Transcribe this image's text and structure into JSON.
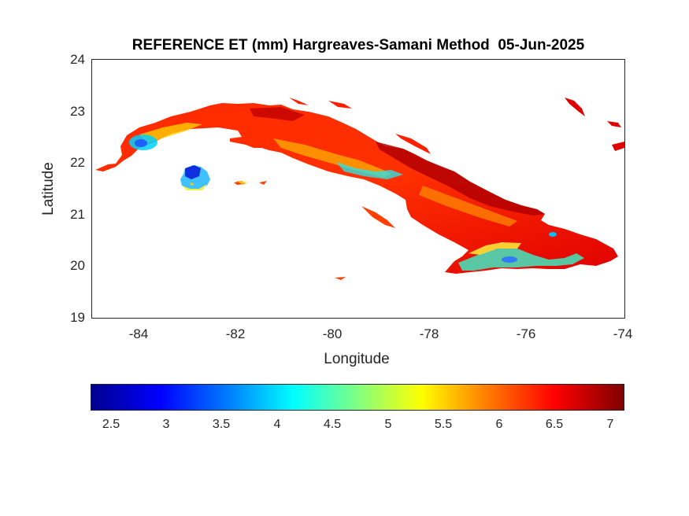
{
  "title": "REFERENCE ET (mm) Hargreaves-Samani Method  05-Jun-2025",
  "map": {
    "xlabel": "Longitude",
    "ylabel": "Latitude",
    "x_ticks": [
      "-84",
      "-82",
      "-80",
      "-78",
      "-76",
      "-74"
    ],
    "y_ticks": [
      "24",
      "23",
      "22",
      "21",
      "20",
      "19"
    ],
    "xlim": [
      -85,
      -74
    ],
    "ylim": [
      19,
      24
    ],
    "region": "Cuba",
    "dominant_colors": [
      "#ff0000",
      "#ff6000",
      "#c00000",
      "#ffff00",
      "#00ffff",
      "#0000ff"
    ]
  },
  "colorbar": {
    "colormap": "jet",
    "range": [
      2.3,
      7.1
    ],
    "tick_labels": [
      "2.5",
      "3",
      "3.5",
      "4",
      "4.5",
      "5",
      "5.5",
      "6",
      "6.5",
      "7"
    ]
  }
}
